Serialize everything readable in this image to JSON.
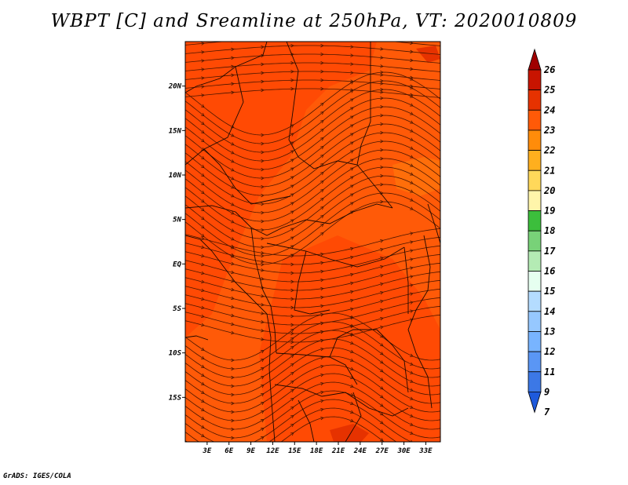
{
  "title": "WBPT [C] and Sreamline at 250hPa, VT: 2020010809",
  "credit": "GrADS: IGES/COLA",
  "map": {
    "lon_range": [
      0,
      35
    ],
    "lat_range": [
      -20,
      25
    ],
    "background_color": "#ff5a08",
    "lat_ticks": [
      "20N",
      "15N",
      "10N",
      "5N",
      "EQ",
      "5S",
      "10S",
      "15S"
    ],
    "lat_values": [
      20,
      15,
      10,
      5,
      0,
      -5,
      -10,
      -15
    ],
    "lon_ticks": [
      "3E",
      "6E",
      "9E",
      "12E",
      "15E",
      "18E",
      "21E",
      "24E",
      "27E",
      "30E",
      "33E"
    ],
    "lon_values": [
      3,
      6,
      9,
      12,
      15,
      18,
      21,
      24,
      27,
      30,
      33
    ]
  },
  "colorbar": {
    "labels": [
      "26",
      "25",
      "24",
      "23",
      "22",
      "21",
      "20",
      "19",
      "18",
      "17",
      "16",
      "15",
      "14",
      "13",
      "12",
      "11",
      "9",
      "7"
    ],
    "colors": [
      "#a00000",
      "#c81400",
      "#e63200",
      "#ff5a08",
      "#ff8c0a",
      "#ffaf1e",
      "#ffd85a",
      "#fff5aa",
      "#3cbe3c",
      "#78d278",
      "#b4ebb4",
      "#e6fff0",
      "#b4dcff",
      "#96c8ff",
      "#78b4ff",
      "#5a96f5",
      "#3c78e6",
      "#1e5adc"
    ]
  }
}
